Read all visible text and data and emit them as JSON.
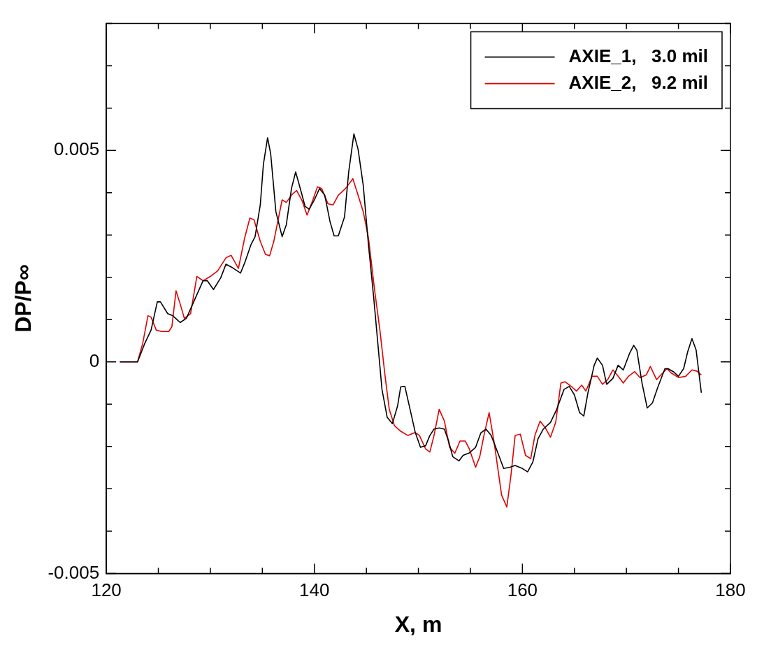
{
  "chart_data": {
    "type": "line",
    "xlabel": "X, m",
    "ylabel": "DP/P∞",
    "xlim": [
      120,
      180
    ],
    "ylim": [
      -0.005,
      0.008
    ],
    "xticks": [
      120,
      {
        "value": 125,
        "label": null
      },
      {
        "value": 130,
        "label": null
      },
      {
        "value": 135,
        "label": null
      },
      140,
      {
        "value": 145,
        "label": null
      },
      {
        "value": 150,
        "label": null
      },
      {
        "value": 155,
        "label": null
      },
      160,
      {
        "value": 165,
        "label": null
      },
      {
        "value": 170,
        "label": null
      },
      {
        "value": 175,
        "label": null
      },
      180
    ],
    "yticks": [
      -0.005,
      {
        "value": -0.004,
        "label": null
      },
      {
        "value": -0.003,
        "label": null
      },
      {
        "value": -0.002,
        "label": null
      },
      {
        "value": -0.001,
        "label": null
      },
      0,
      {
        "value": 0.001,
        "label": null
      },
      {
        "value": 0.002,
        "label": null
      },
      {
        "value": 0.003,
        "label": null
      },
      {
        "value": 0.004,
        "label": null
      },
      0.005,
      {
        "value": 0.006,
        "label": null
      },
      {
        "value": 0.007,
        "label": null
      },
      {
        "value": 0.008,
        "label": null
      }
    ],
    "grid": false,
    "legend": "top right",
    "marker": "none",
    "line_style": "solid",
    "series": [
      {
        "name": "AXIE_1,   3.0 mil",
        "color": "#000000",
        "x": [
          121.3,
          123,
          123.7,
          124.3,
          124.9,
          125.2,
          125.9,
          126.4,
          127.1,
          127.7,
          128.4,
          129.3,
          129.7,
          130.3,
          131,
          131.5,
          132.1,
          132.9,
          133.3,
          133.9,
          134.3,
          134.8,
          135.1,
          135.5,
          135.8,
          136.3,
          136.9,
          137.3,
          137.8,
          138.2,
          138.7,
          139.1,
          139.5,
          140,
          140.5,
          141,
          141.5,
          141.9,
          142.3,
          142.9,
          143.3,
          143.8,
          144.2,
          144.7,
          145.2,
          145.7,
          146.1,
          146.5,
          147,
          147.5,
          148,
          148.3,
          148.7,
          149.2,
          149.7,
          150.2,
          150.7,
          151.1,
          151.5,
          152,
          152.5,
          152.9,
          153.3,
          153.9,
          154.3,
          154.9,
          155.5,
          156,
          156.5,
          157,
          157.5,
          158.2,
          158.8,
          159.3,
          160,
          160.5,
          161,
          161.5,
          162,
          162.7,
          163.3,
          164,
          164.5,
          165,
          165.5,
          165.9,
          166.3,
          166.9,
          167.2,
          167.7,
          168.1,
          168.7,
          169.2,
          169.7,
          170.3,
          170.7,
          171,
          171.5,
          172,
          172.5,
          173,
          173.7,
          174,
          174.5,
          175,
          175.5,
          175.9,
          176.3,
          176.7,
          177.2
        ],
        "values": [
          0,
          0,
          0.00044,
          0.00075,
          0.00142,
          0.00142,
          0.00114,
          0.00109,
          0.00093,
          0.00103,
          0.00142,
          0.00192,
          0.00192,
          0.00171,
          0.00199,
          0.00231,
          0.00223,
          0.0021,
          0.00234,
          0.00277,
          0.00296,
          0.00371,
          0.00467,
          0.0053,
          0.00492,
          0.00355,
          0.00296,
          0.00324,
          0.0041,
          0.00449,
          0.00405,
          0.00368,
          0.00361,
          0.00383,
          0.0041,
          0.00394,
          0.00332,
          0.00298,
          0.00298,
          0.00343,
          0.00449,
          0.00539,
          0.00503,
          0.00417,
          0.00277,
          0.00153,
          0.00044,
          -0.00065,
          -0.00131,
          -0.00146,
          -0.00104,
          -0.00059,
          -0.00058,
          -0.00112,
          -0.00167,
          -0.00202,
          -0.00198,
          -0.00174,
          -0.00159,
          -0.00156,
          -0.00159,
          -0.00187,
          -0.00224,
          -0.00234,
          -0.00221,
          -0.00215,
          -0.00202,
          -0.00168,
          -0.00159,
          -0.00174,
          -0.00206,
          -0.00252,
          -0.00249,
          -0.00245,
          -0.00252,
          -0.0026,
          -0.00237,
          -0.00182,
          -0.00159,
          -0.00143,
          -0.00112,
          -0.00065,
          -0.00058,
          -0.00078,
          -0.0012,
          -0.00128,
          -0.00073,
          -8e-05,
          9e-05,
          -8e-05,
          -0.00053,
          -0.00039,
          -8e-05,
          -0.00019,
          0.0002,
          0.00039,
          0.00028,
          -0.0005,
          -0.00109,
          -0.00097,
          -0.00061,
          -0.00016,
          -0.00016,
          -0.00023,
          -0.00034,
          -0.00016,
          0.00025,
          0.00055,
          0.00028,
          -0.00073
        ]
      },
      {
        "name": "AXIE_2,   9.2 mil",
        "color": "#e00000",
        "x": [
          121.3,
          123,
          123.5,
          124,
          124.3,
          124.8,
          125.3,
          126,
          126.3,
          126.7,
          127.1,
          127.5,
          128.1,
          128.7,
          129.3,
          130,
          130.7,
          131.5,
          132,
          132.7,
          133.3,
          133.8,
          134.2,
          134.8,
          135.3,
          135.7,
          136.1,
          136.9,
          137.3,
          137.9,
          138.3,
          138.8,
          139.3,
          139.8,
          140.3,
          140.7,
          141.3,
          141.8,
          142.3,
          143,
          143.7,
          144.1,
          144.7,
          145.2,
          145.8,
          146.3,
          146.8,
          147.2,
          147.7,
          148.3,
          149,
          149.7,
          150.1,
          150.7,
          151.1,
          151.5,
          152,
          152.5,
          153,
          153.5,
          154,
          154.5,
          154.9,
          155.5,
          155.9,
          156.3,
          156.8,
          157.3,
          158,
          158.5,
          158.9,
          159.3,
          159.8,
          160.3,
          160.8,
          161.2,
          161.7,
          162.2,
          162.7,
          163.2,
          163.7,
          164.1,
          164.7,
          165.2,
          165.7,
          166.1,
          166.7,
          167.2,
          167.7,
          168.2,
          168.7,
          169.2,
          169.7,
          170.2,
          170.8,
          171.3,
          171.9,
          172.3,
          172.9,
          173.3,
          173.9,
          174.3,
          175,
          175.7,
          176.3,
          176.8,
          177.2
        ],
        "values": [
          0,
          0,
          0.00044,
          0.00109,
          0.00106,
          0.00075,
          0.00072,
          0.00072,
          0.00083,
          0.00168,
          0.00137,
          0.00103,
          0.00114,
          0.00202,
          0.00192,
          0.00202,
          0.00215,
          0.00246,
          0.00252,
          0.00221,
          0.00293,
          0.0034,
          0.00336,
          0.00285,
          0.00254,
          0.00251,
          0.00285,
          0.00383,
          0.00377,
          0.00397,
          0.00405,
          0.00382,
          0.00347,
          0.00379,
          0.00414,
          0.0041,
          0.00374,
          0.00371,
          0.00394,
          0.0041,
          0.00433,
          0.00402,
          0.00355,
          0.00293,
          0.00168,
          0.00075,
          -0.00034,
          -0.00112,
          -0.00151,
          -0.00164,
          -0.00174,
          -0.00167,
          -0.00174,
          -0.00206,
          -0.00213,
          -0.00174,
          -0.00112,
          -0.0014,
          -0.00202,
          -0.00216,
          -0.00187,
          -0.00187,
          -0.00206,
          -0.00249,
          -0.00224,
          -0.00174,
          -0.0012,
          -0.00193,
          -0.00315,
          -0.00343,
          -0.00268,
          -0.00174,
          -0.00171,
          -0.00221,
          -0.00229,
          -0.00174,
          -0.0014,
          -0.00156,
          -0.00178,
          -0.00143,
          -0.0005,
          -0.00047,
          -0.00058,
          -0.00069,
          -0.00055,
          -0.00069,
          -0.00034,
          -0.00034,
          -0.00053,
          -0.00042,
          -0.00019,
          -0.00034,
          -0.0005,
          -0.00034,
          -0.00023,
          -0.00037,
          -0.00031,
          -0.00011,
          -0.00042,
          -0.00031,
          -0.00016,
          -0.00026,
          -0.00037,
          -0.00034,
          -0.00019,
          -0.00022,
          -0.00031
        ]
      }
    ]
  }
}
